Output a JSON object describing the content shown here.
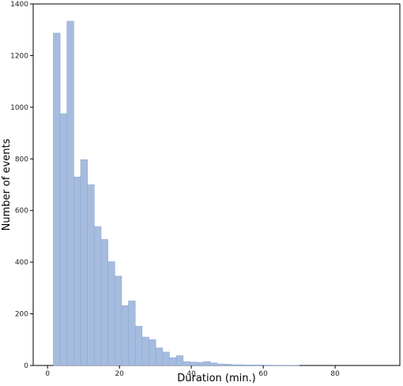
{
  "chart_data": {
    "type": "bar",
    "subtype": "histogram",
    "title": "",
    "xlabel": "Duration (min.)",
    "ylabel": "Number of events",
    "xlim": [
      -4,
      98
    ],
    "ylim": [
      0,
      1400
    ],
    "xticks": [
      0,
      20,
      40,
      60,
      80
    ],
    "yticks": [
      0,
      200,
      400,
      600,
      800,
      1000,
      1200,
      1400
    ],
    "bin_width": 1.9,
    "bin_start": 1.6,
    "values": [
      1287,
      975,
      1333,
      730,
      797,
      700,
      538,
      488,
      402,
      346,
      232,
      250,
      152,
      110,
      100,
      68,
      52,
      30,
      38,
      15,
      13,
      12,
      15,
      10,
      6,
      5,
      3,
      3,
      2,
      2,
      2,
      1,
      1,
      1,
      1,
      1,
      0,
      0,
      0,
      0,
      0,
      0,
      0,
      0,
      0,
      0,
      0
    ],
    "grid": false,
    "legend": "none",
    "bar_color": "#a6bcde",
    "bar_edge_color": "#8ea8d3"
  }
}
